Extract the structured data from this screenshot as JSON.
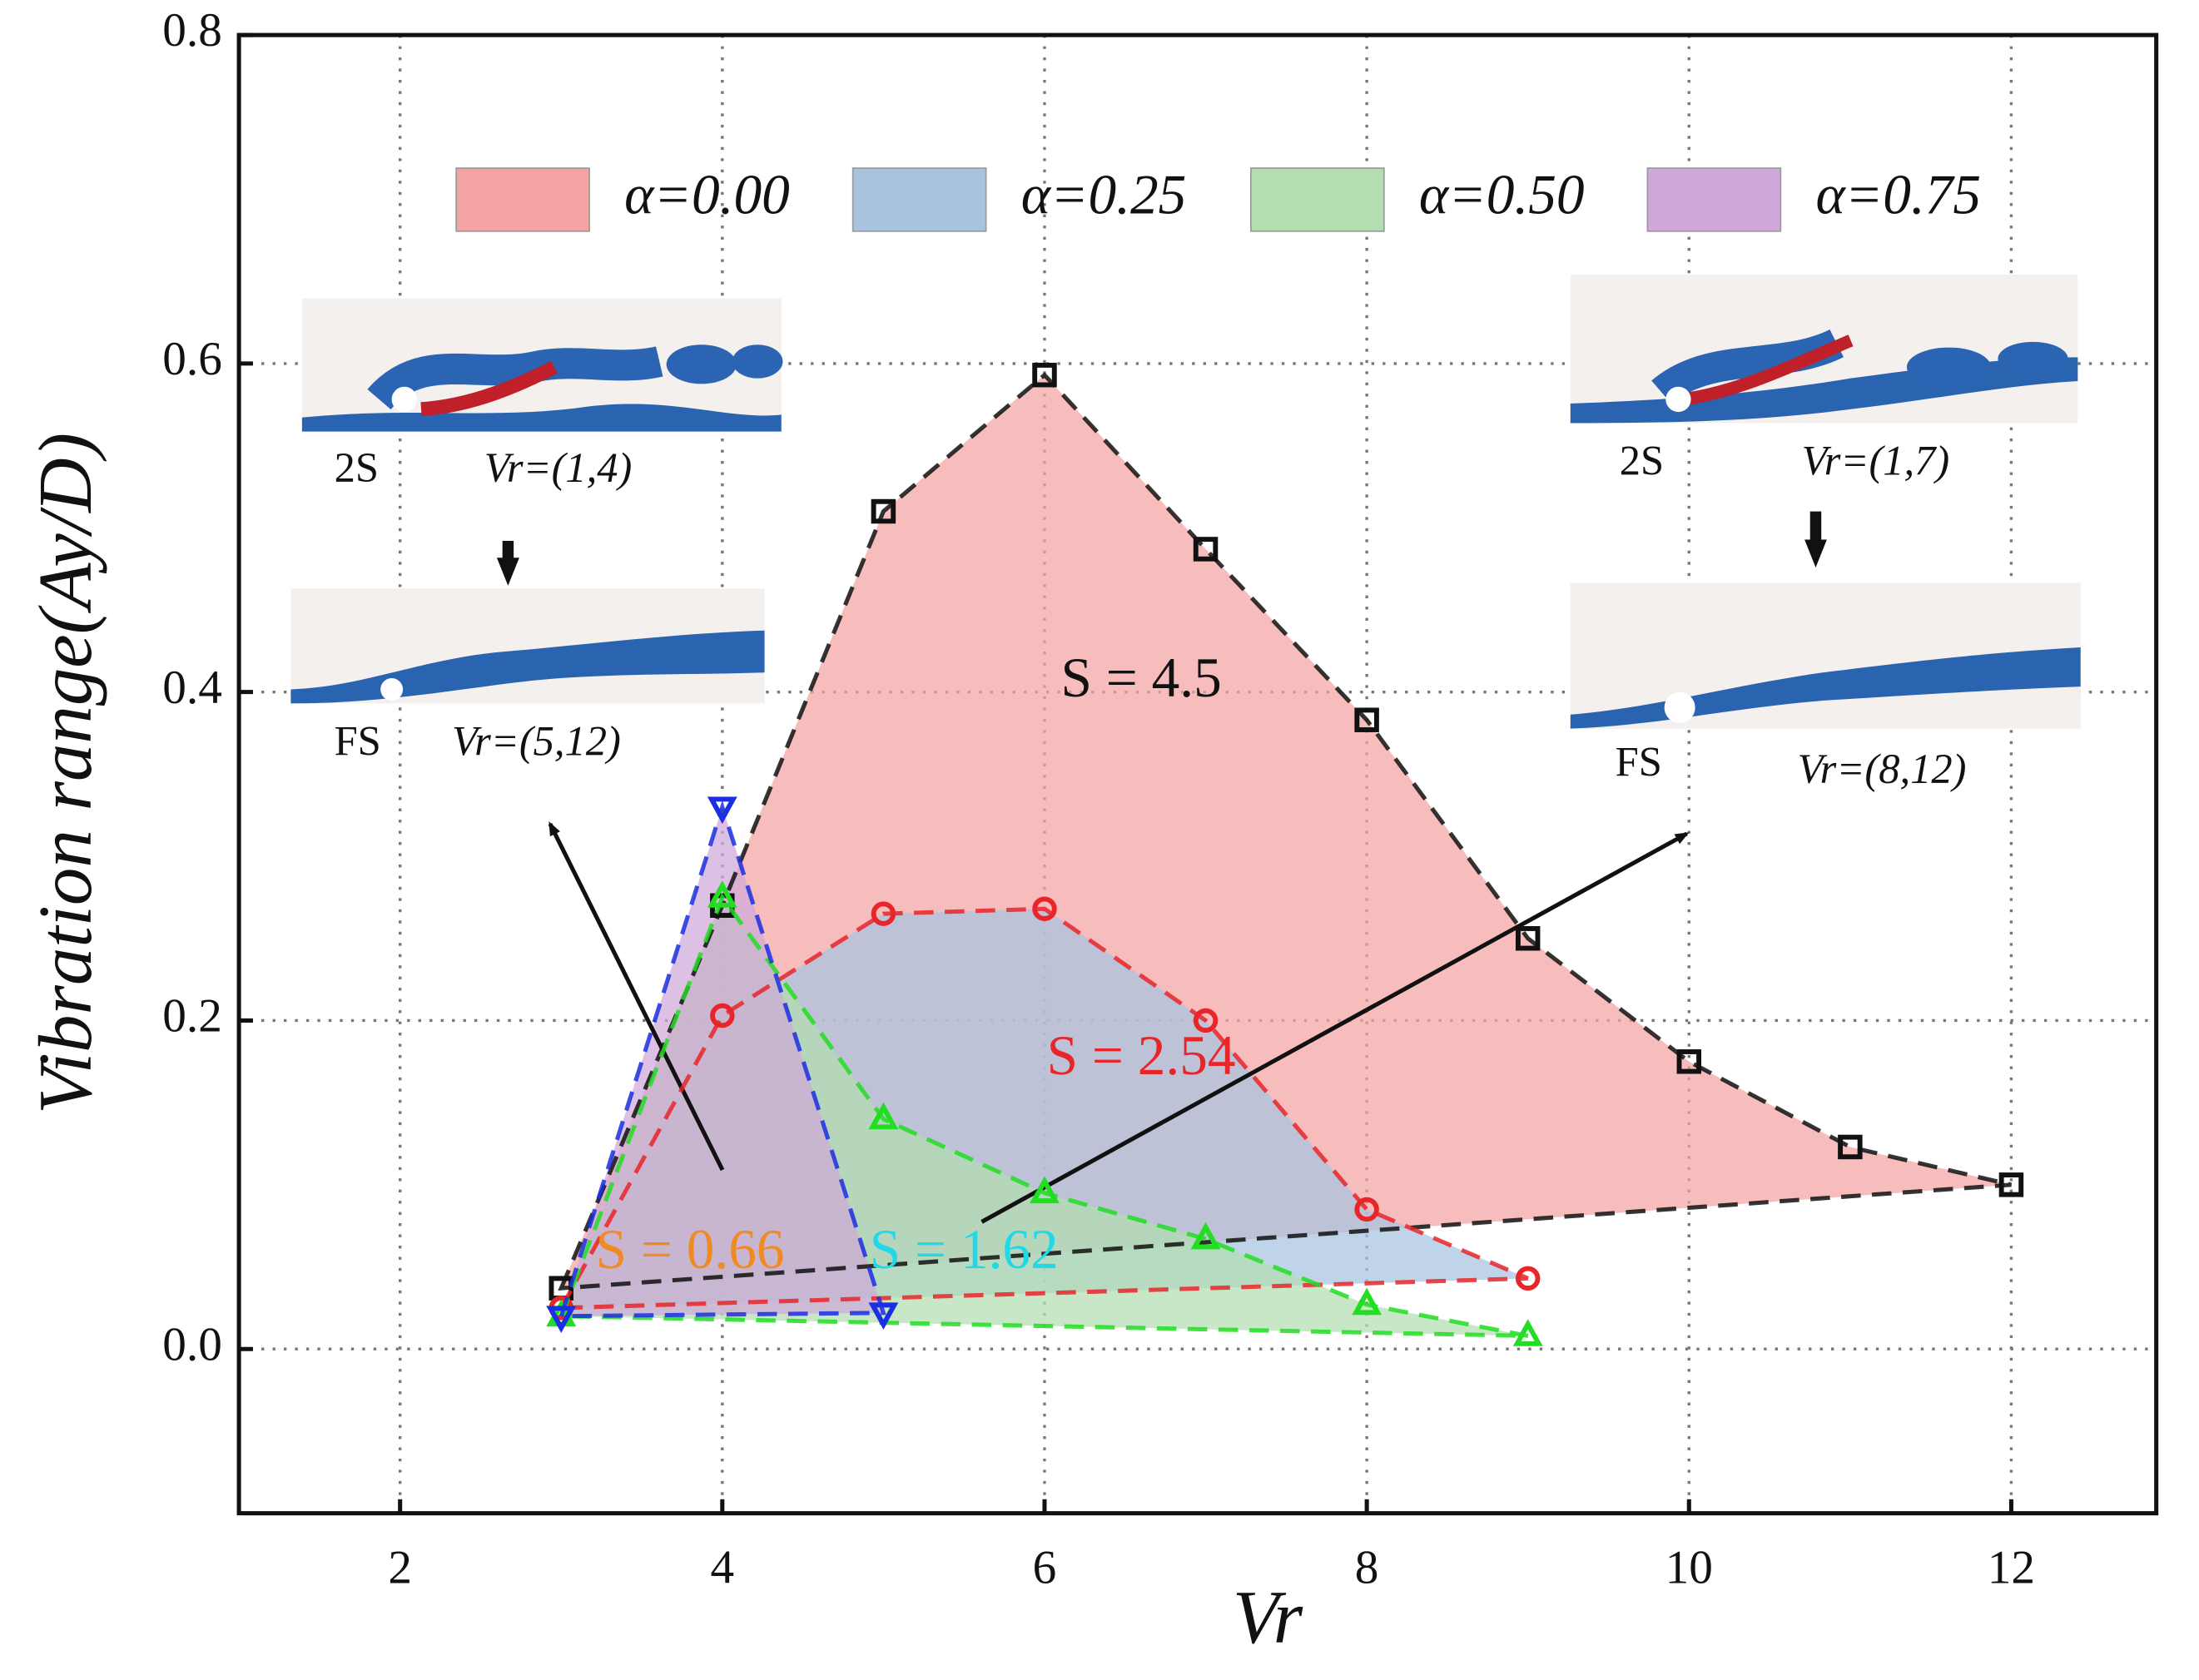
{
  "chart_data": {
    "type": "range-area",
    "x_label": "Vr",
    "y_label": "Vibration range(Ay/D)",
    "xlim": [
      1,
      12.9
    ],
    "ylim": [
      -0.1,
      0.8
    ],
    "xticks": [
      2,
      4,
      6,
      8,
      10,
      12
    ],
    "yticks": [
      {
        "value": 0,
        "label": "0.0"
      },
      {
        "value": 0.2,
        "label": "0.2"
      },
      {
        "value": 0.4,
        "label": "0.4"
      },
      {
        "value": 0.6,
        "label": "0.6"
      },
      {
        "value": 0.8,
        "label": "0.8"
      }
    ],
    "grid": true,
    "series": [
      {
        "name": "α=0.00",
        "color": "#f4a3a3",
        "line_color": "#111111",
        "marker": "square",
        "x": [
          3,
          4,
          5,
          6,
          7,
          8,
          9,
          10,
          11,
          12
        ],
        "values": [
          0.037,
          0.27,
          0.51,
          0.593,
          0.487,
          0.383,
          0.25,
          0.175,
          0.123,
          0.1
        ]
      },
      {
        "name": "α=0.25",
        "color": "#a8c3e0",
        "line_color": "#e8262a",
        "marker": "circle",
        "x": [
          3,
          4,
          5,
          6,
          7,
          8,
          9
        ],
        "values": [
          0.025,
          0.203,
          0.265,
          0.268,
          0.2,
          0.085,
          0.043
        ]
      },
      {
        "name": "α=0.50",
        "color": "#b3deb0",
        "line_color": "#22dd22",
        "marker": "triangle-up",
        "x": [
          3,
          4,
          5,
          6,
          7,
          8,
          9
        ],
        "values": [
          0.02,
          0.275,
          0.14,
          0.095,
          0.067,
          0.027,
          0.008
        ]
      },
      {
        "name": "α=0.75",
        "color": "#cfa9da",
        "line_color": "#1a2fe0",
        "marker": "triangle-down",
        "x": [
          3,
          4,
          5
        ],
        "values": [
          0.02,
          0.33,
          0.022
        ]
      }
    ],
    "annotations": [
      {
        "text": "S = 4.5",
        "color": "#111111",
        "x": 6.6,
        "y": 0.405
      },
      {
        "text": "S = 2.54",
        "color": "#e8262a",
        "x": 6.6,
        "y": 0.175
      },
      {
        "text": "S = 1.62",
        "color": "#22d8e8",
        "x": 5.5,
        "y": 0.057
      },
      {
        "text": "S = 0.66",
        "color": "#f08a24",
        "x": 3.8,
        "y": 0.057
      }
    ],
    "insets": [
      {
        "mode": "2S",
        "label": "Vr=(1,4)"
      },
      {
        "mode": "FS",
        "label": "Vr=(5,12)"
      },
      {
        "mode": "2S",
        "label": "Vr=(1,7)"
      },
      {
        "mode": "FS",
        "label": "Vr=(8,12)"
      }
    ]
  }
}
